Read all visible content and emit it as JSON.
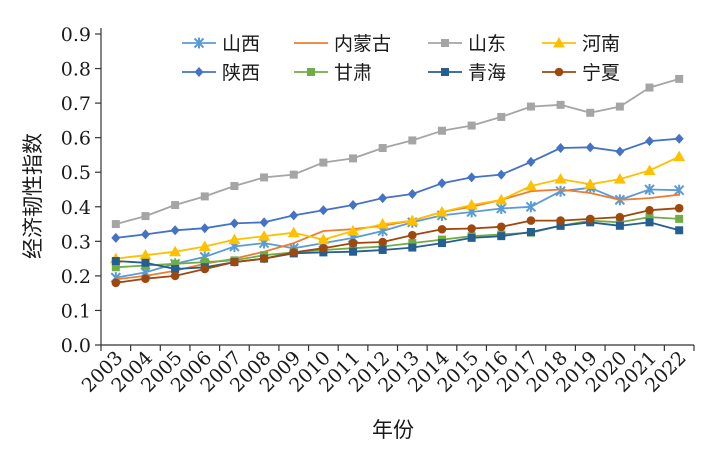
{
  "chart_data": {
    "type": "line",
    "title": "",
    "xlabel": "年份",
    "ylabel": "经济韧性指数",
    "ylim": [
      0,
      0.9
    ],
    "yticks": [
      0.0,
      0.1,
      0.2,
      0.3,
      0.4,
      0.5,
      0.6,
      0.7,
      0.8,
      0.9
    ],
    "ytick_labels": [
      "0.0",
      "0.1",
      "0.2",
      "0.3",
      "0.4",
      "0.5",
      "0.6",
      "0.7",
      "0.8",
      "0.9"
    ],
    "legend_position": "top",
    "categories": [
      "2003",
      "2004",
      "2005",
      "2006",
      "2007",
      "2008",
      "2009",
      "2010",
      "2011",
      "2012",
      "2013",
      "2014",
      "2015",
      "2016",
      "2017",
      "2018",
      "2019",
      "2020",
      "2021",
      "2022"
    ],
    "series": [
      {
        "name": "山西",
        "color": "#5b9bd5",
        "marker": "star",
        "values": [
          0.195,
          0.21,
          0.235,
          0.255,
          0.285,
          0.295,
          0.28,
          0.295,
          0.31,
          0.33,
          0.355,
          0.375,
          0.385,
          0.395,
          0.4,
          0.445,
          0.455,
          0.42,
          0.45,
          0.448
        ]
      },
      {
        "name": "内蒙古",
        "color": "#ed7d31",
        "marker": "none",
        "values": [
          0.19,
          0.2,
          0.215,
          0.235,
          0.25,
          0.27,
          0.295,
          0.33,
          0.335,
          0.345,
          0.36,
          0.385,
          0.4,
          0.42,
          0.445,
          0.45,
          0.44,
          0.42,
          0.425,
          0.435
        ]
      },
      {
        "name": "山东",
        "color": "#a5a5a5",
        "marker": "square",
        "values": [
          0.35,
          0.373,
          0.405,
          0.43,
          0.46,
          0.485,
          0.493,
          0.528,
          0.54,
          0.57,
          0.592,
          0.62,
          0.635,
          0.66,
          0.69,
          0.695,
          0.672,
          0.69,
          0.745,
          0.77
        ]
      },
      {
        "name": "河南",
        "color": "#ffc000",
        "marker": "triangle",
        "values": [
          0.25,
          0.26,
          0.27,
          0.285,
          0.305,
          0.315,
          0.325,
          0.305,
          0.33,
          0.35,
          0.36,
          0.385,
          0.405,
          0.42,
          0.46,
          0.48,
          0.465,
          0.48,
          0.505,
          0.545
        ]
      },
      {
        "name": "陕西",
        "color": "#4472c4",
        "marker": "diamond",
        "values": [
          0.31,
          0.32,
          0.332,
          0.338,
          0.352,
          0.355,
          0.375,
          0.39,
          0.405,
          0.425,
          0.437,
          0.468,
          0.485,
          0.493,
          0.53,
          0.57,
          0.572,
          0.56,
          0.59,
          0.597
        ]
      },
      {
        "name": "甘肃",
        "color": "#70ad47",
        "marker": "square",
        "values": [
          0.225,
          0.23,
          0.235,
          0.24,
          0.245,
          0.26,
          0.268,
          0.275,
          0.28,
          0.285,
          0.295,
          0.305,
          0.315,
          0.32,
          0.325,
          0.345,
          0.36,
          0.355,
          0.37,
          0.365
        ]
      },
      {
        "name": "青海",
        "color": "#255e91",
        "marker": "square",
        "values": [
          0.243,
          0.238,
          0.22,
          0.225,
          0.24,
          0.25,
          0.265,
          0.268,
          0.27,
          0.275,
          0.282,
          0.295,
          0.31,
          0.315,
          0.327,
          0.345,
          0.355,
          0.345,
          0.355,
          0.332
        ]
      },
      {
        "name": "宁夏",
        "color": "#9e480e",
        "marker": "circle",
        "values": [
          0.18,
          0.192,
          0.2,
          0.22,
          0.24,
          0.25,
          0.268,
          0.28,
          0.295,
          0.298,
          0.318,
          0.335,
          0.337,
          0.342,
          0.36,
          0.36,
          0.365,
          0.37,
          0.39,
          0.396
        ]
      }
    ]
  }
}
